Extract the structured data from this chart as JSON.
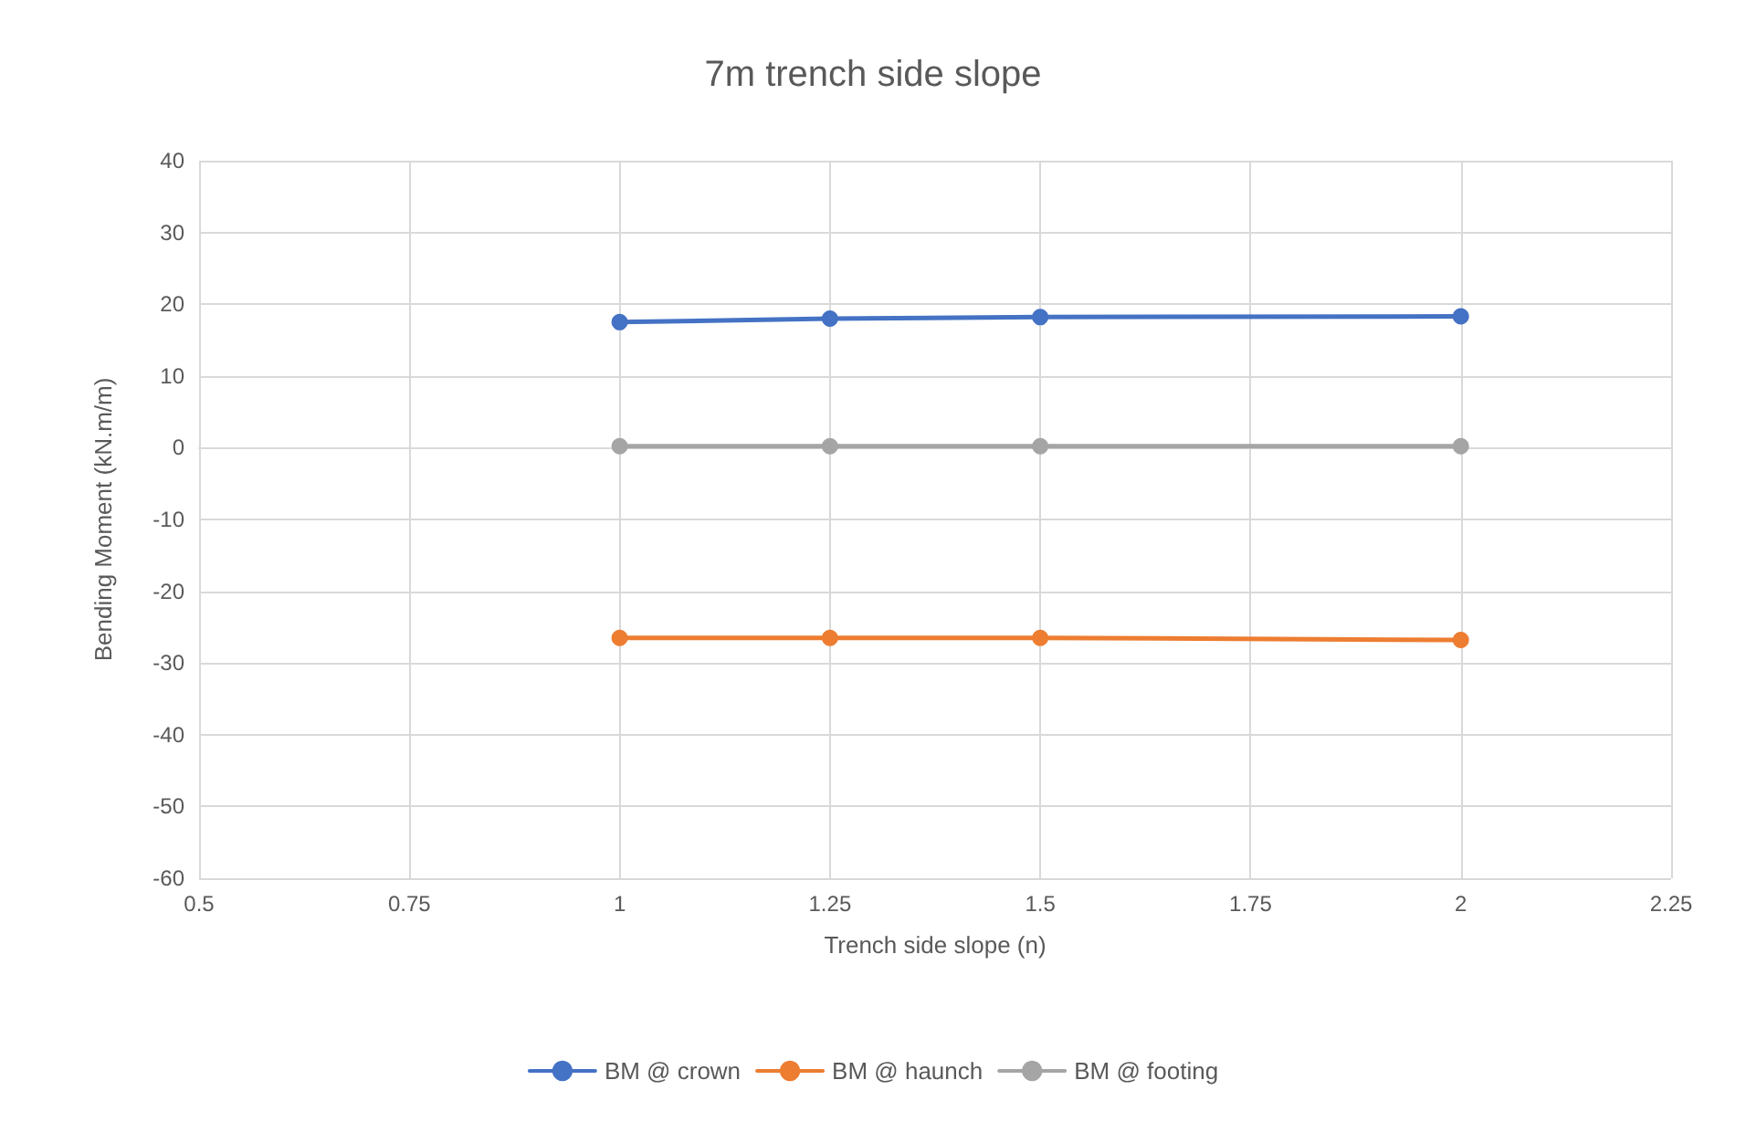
{
  "chart_data": {
    "type": "line",
    "title": "7m trench side slope",
    "xlabel": "Trench side slope (n)",
    "ylabel": "Bending Moment (kN.m/m)",
    "x": [
      1,
      1.25,
      1.5,
      2
    ],
    "series": [
      {
        "name": "BM @ crown",
        "color": "#4472c4",
        "values": [
          17.5,
          18,
          18.2,
          18.3
        ]
      },
      {
        "name": "BM @ haunch",
        "color": "#ed7d31",
        "values": [
          -26.5,
          -26.5,
          -26.5,
          -26.8
        ]
      },
      {
        "name": "BM @ footing",
        "color": "#a5a5a5",
        "values": [
          0.2,
          0.2,
          0.2,
          0.2
        ]
      }
    ],
    "xlim": [
      0.5,
      2.25
    ],
    "xticks": [
      0.5,
      0.75,
      1,
      1.25,
      1.5,
      1.75,
      2,
      2.25
    ],
    "ylim": [
      -60,
      40
    ],
    "yticks": [
      -60,
      -50,
      -40,
      -30,
      -20,
      -10,
      0,
      10,
      20,
      30,
      40
    ],
    "grid": true,
    "legend": "bottom",
    "marker": "circle",
    "line_style": "solid"
  }
}
